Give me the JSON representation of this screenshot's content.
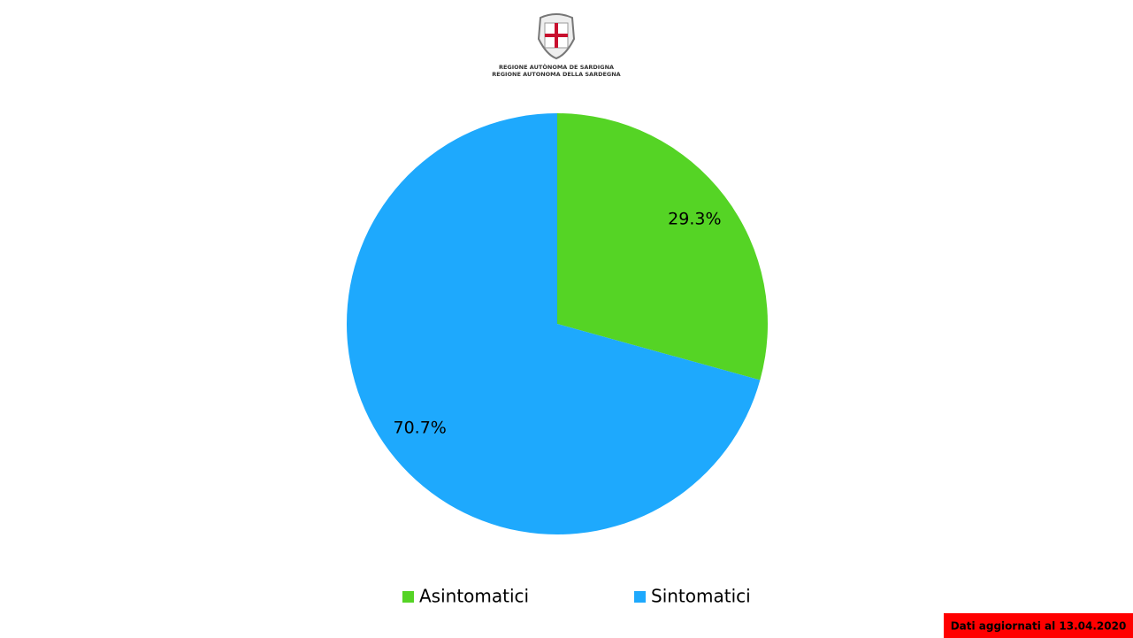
{
  "header": {
    "lines": [
      "REGIONE AUTÒNOMA DE SARDIGNA",
      "REGIONE AUTONOMA DELLA SARDEGNA"
    ]
  },
  "chart_data": {
    "type": "pie",
    "categories": [
      "Asintomatici",
      "Sintomatici"
    ],
    "values": [
      29.3,
      70.7
    ],
    "value_labels": [
      "29.3%",
      "70.7%"
    ],
    "colors": [
      "#55d425",
      "#1ea9fd"
    ]
  },
  "footer": {
    "note": "Dati aggiornati al 13.04.2020"
  }
}
